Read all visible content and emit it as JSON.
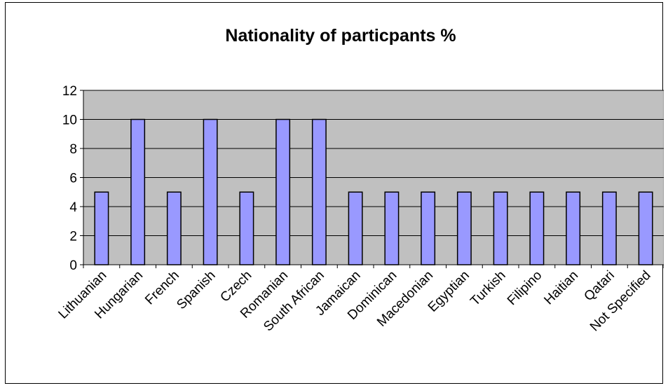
{
  "chart_data": {
    "type": "bar",
    "title": "Nationality of particpants %",
    "xlabel": "",
    "ylabel": "",
    "categories": [
      "Lithuanian",
      "Hungarian",
      "French",
      "Spanish",
      "Czech",
      "Romanian",
      "South African",
      "Jamaican",
      "Dominican",
      "Macedonian",
      "Egyptian",
      "Turkish",
      "Filipino",
      "Haitian",
      "Qatari",
      "Not Specified"
    ],
    "values": [
      5,
      10,
      5,
      10,
      5,
      10,
      10,
      5,
      5,
      5,
      5,
      5,
      5,
      5,
      5,
      5
    ],
    "ylim": [
      0,
      12
    ],
    "yticks": [
      "0",
      "2",
      "4",
      "6",
      "8",
      "10",
      "12"
    ],
    "grid": true,
    "legend": "none",
    "colors": {
      "plot_background": "#c0c0c0",
      "bar_fill": "#9999ff",
      "bar_stroke": "#000000",
      "gridline": "#000000"
    }
  }
}
